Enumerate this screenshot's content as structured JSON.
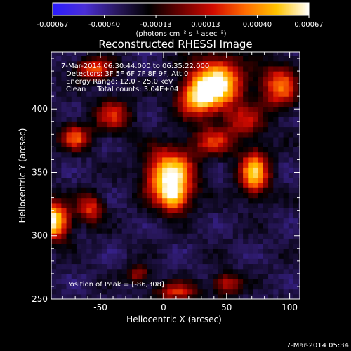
{
  "colorbar": {
    "tick_labels": [
      "-0.00067",
      "-0.00040",
      "-0.00013",
      "0.00013",
      "0.00040",
      "0.00067"
    ],
    "tick_values": [
      -0.00067,
      -0.0004,
      -0.00013,
      0.00013,
      0.0004,
      0.00067
    ],
    "units": "(photons cm⁻² s⁻¹ asec⁻²)",
    "colors": [
      "#2b1cff",
      "#4a2fd6",
      "#2a1860",
      "#000000",
      "#6b0000",
      "#d10a00",
      "#ff6a00",
      "#ffc400",
      "#ffffff"
    ]
  },
  "chart_data": {
    "type": "heatmap",
    "title": "Reconstructed RHESSI Image",
    "xlabel": "Heliocentric X (arcsec)",
    "ylabel": "Heliocentric Y (arcsec)",
    "xlim": [
      -89,
      108
    ],
    "ylim": [
      250,
      445
    ],
    "x_ticks": [
      -50,
      0,
      50,
      100
    ],
    "y_ticks": [
      250,
      300,
      350,
      400
    ],
    "x_tick_labels": [
      "-50",
      "0",
      "50",
      "100"
    ],
    "y_tick_labels": [
      "250",
      "300",
      "350",
      "400"
    ],
    "info_lines": [
      "7-Mar-2014 06:30:44.000 to 06:35:22.000",
      "Detectors: 3F 5F 6F 7F 8F 9F, Att 0",
      "Energy Range: 12.0 - 25.0 keV",
      "Clean     Total counts: 3.04E+04"
    ],
    "peak_label": "Position of Peak = [-86,308]",
    "peak_position": [
      -86,
      308
    ],
    "sources": [
      {
        "x": 42,
        "y": 420,
        "sx": 14,
        "sy": 14,
        "amp": 1.0
      },
      {
        "x": 25,
        "y": 408,
        "sx": 10,
        "sy": 10,
        "amp": 0.55
      },
      {
        "x": 92,
        "y": 418,
        "sx": 10,
        "sy": 12,
        "amp": 0.6
      },
      {
        "x": -55,
        "y": 432,
        "sx": 10,
        "sy": 6,
        "amp": 0.55
      },
      {
        "x": -70,
        "y": 378,
        "sx": 8,
        "sy": 7,
        "amp": 0.55
      },
      {
        "x": -40,
        "y": 395,
        "sx": 10,
        "sy": 9,
        "amp": 0.45
      },
      {
        "x": 5,
        "y": 348,
        "sx": 13,
        "sy": 14,
        "amp": 0.95
      },
      {
        "x": 8,
        "y": 330,
        "sx": 8,
        "sy": 8,
        "amp": 0.55
      },
      {
        "x": 72,
        "y": 350,
        "sx": 8,
        "sy": 12,
        "amp": 0.8
      },
      {
        "x": -88,
        "y": 312,
        "sx": 9,
        "sy": 10,
        "amp": 0.95
      },
      {
        "x": -58,
        "y": 322,
        "sx": 7,
        "sy": 8,
        "amp": 0.5
      },
      {
        "x": 40,
        "y": 375,
        "sx": 12,
        "sy": 8,
        "amp": 0.45
      },
      {
        "x": 65,
        "y": 390,
        "sx": 10,
        "sy": 8,
        "amp": 0.4
      },
      {
        "x": -20,
        "y": 270,
        "sx": 6,
        "sy": 5,
        "amp": 0.4
      },
      {
        "x": 50,
        "y": 262,
        "sx": 8,
        "sy": 6,
        "amp": 0.45
      },
      {
        "x": 10,
        "y": 256,
        "sx": 12,
        "sy": 5,
        "amp": 0.45
      }
    ]
  },
  "timestamp": "7-Mar-2014 05:34"
}
